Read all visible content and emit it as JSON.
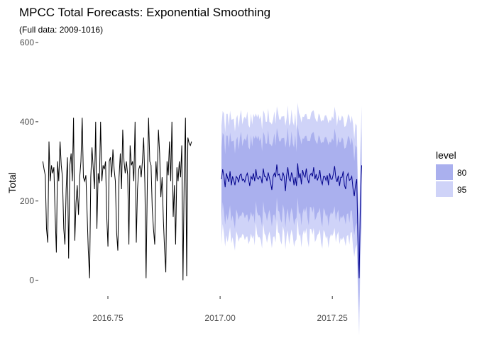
{
  "chart_data": {
    "type": "line",
    "title": "MPCC Total Forecasts: Exponential Smoothing",
    "subtitle": "(Full data: 2009-1016)",
    "xlabel": "",
    "ylabel": "Total",
    "xlim": [
      2016.595,
      2017.43
    ],
    "ylim": [
      -40,
      600
    ],
    "x_ticks": [
      2016.75,
      2017.0,
      2017.25
    ],
    "x_tick_labels": [
      "2016.75",
      "2017.00",
      "2017.25"
    ],
    "y_ticks": [
      0,
      200,
      400,
      600
    ],
    "y_tick_labels": [
      "0",
      "200",
      "400",
      "600"
    ],
    "grid": false,
    "legend": {
      "title": "level",
      "position": "right",
      "entries": [
        {
          "label": "80",
          "color": "#aab0ee"
        },
        {
          "label": "95",
          "color": "#cfd3f8"
        }
      ]
    },
    "colors": {
      "history": "#000000",
      "forecast": "#00008b",
      "band80": "#aab0ee",
      "band95": "#cfd3f8"
    },
    "series": [
      {
        "kind": "history",
        "x_start": 2016.605,
        "x_step": 0.0027397,
        "values": [
          300,
          280,
          265,
          130,
          95,
          350,
          250,
          290,
          270,
          285,
          170,
          70,
          300,
          250,
          350,
          290,
          260,
          130,
          90,
          230,
          310,
          55,
          290,
          320,
          250,
          410,
          100,
          195,
          240,
          165,
          260,
          300,
          410,
          260,
          250,
          265,
          170,
          75,
          5,
          260,
          335,
          280,
          230,
          400,
          130,
          270,
          245,
          400,
          250,
          290,
          280,
          300,
          160,
          85,
          300,
          310,
          260,
          330,
          280,
          250,
          120,
          75,
          260,
          320,
          230,
          380,
          300,
          270,
          300,
          265,
          90,
          340,
          290,
          300,
          250,
          400,
          95,
          230,
          280,
          290,
          260,
          300,
          360,
          245,
          5,
          250,
          410,
          300,
          290,
          180,
          130,
          90,
          300,
          250,
          380,
          320,
          210,
          260,
          155,
          80,
          20,
          300,
          265,
          350,
          250,
          400,
          160,
          240,
          90,
          285,
          250,
          300,
          260,
          340,
          0,
          270,
          410,
          10,
          360,
          345,
          340,
          350
        ]
      },
      {
        "kind": "forecast",
        "x_start": 2017.003,
        "x_step": 0.0027397,
        "values": [
          255,
          280,
          262,
          235,
          270,
          258,
          248,
          275,
          240,
          262,
          252,
          240,
          262,
          258,
          247,
          265,
          268,
          252,
          255,
          248,
          262,
          270,
          256,
          238,
          262,
          255,
          270,
          250,
          280,
          258,
          255,
          262,
          260,
          245,
          282,
          262,
          262,
          250,
          272,
          258,
          245,
          228,
          262,
          270,
          260,
          292,
          265,
          268,
          255,
          252,
          272,
          262,
          225,
          265,
          285,
          255,
          250,
          272,
          262,
          240,
          260,
          238,
          295,
          258,
          270,
          242,
          278,
          265,
          260,
          282,
          256,
          245,
          265,
          270,
          262,
          285,
          255,
          268,
          252,
          262,
          278,
          250,
          242,
          262,
          262,
          252,
          265,
          240,
          270,
          255,
          255,
          268,
          288,
          258,
          248,
          264,
          238,
          260,
          260,
          275,
          240,
          230,
          262,
          270,
          252,
          255,
          262,
          230,
          212,
          240,
          255,
          100,
          5,
          205,
          290
        ]
      }
    ],
    "intervals": {
      "lo80_offset": 95,
      "hi80_offset": 95,
      "lo95_offset": 150,
      "hi95_offset": 150
    }
  }
}
